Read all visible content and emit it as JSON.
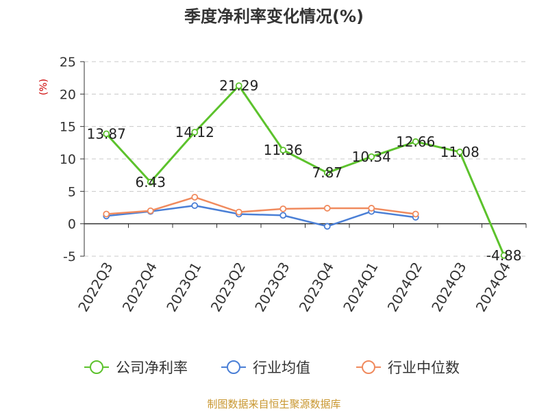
{
  "source": "制图数据来自恒生聚源数据库",
  "colors": {
    "source": "#c8962f",
    "unit": "#cc0000"
  },
  "chart_data": {
    "type": "line",
    "title": "季度净利率变化情况(%)",
    "ylabel": "(%)",
    "xlabel": "",
    "ylim": [
      -5,
      25
    ],
    "yticks": [
      -5,
      0,
      5,
      10,
      15,
      20,
      25
    ],
    "grid": true,
    "legend_position": "bottom",
    "categories": [
      "2022Q3",
      "2022Q4",
      "2023Q1",
      "2023Q2",
      "2023Q3",
      "2023Q4",
      "2024Q1",
      "2024Q2",
      "2024Q3",
      "2024Q4"
    ],
    "series": [
      {
        "name": "公司净利率",
        "color": "#5cc22c",
        "values": [
          13.87,
          6.43,
          14.12,
          21.29,
          11.36,
          7.87,
          10.34,
          12.66,
          11.08,
          -4.88
        ],
        "labels": [
          "13.87",
          "6.43",
          "14.12",
          "21.29",
          "11.36",
          "7.87",
          "10.34",
          "12.66",
          "11.08",
          "-4.88"
        ]
      },
      {
        "name": "行业均值",
        "color": "#4a7fd6",
        "values": [
          1.2,
          1.9,
          2.8,
          1.5,
          1.3,
          -0.4,
          1.9,
          1.0,
          null,
          null
        ]
      },
      {
        "name": "行业中位数",
        "color": "#f08a5d",
        "values": [
          1.5,
          2.0,
          4.1,
          1.8,
          2.3,
          2.4,
          2.4,
          1.5,
          null,
          null
        ]
      }
    ]
  }
}
